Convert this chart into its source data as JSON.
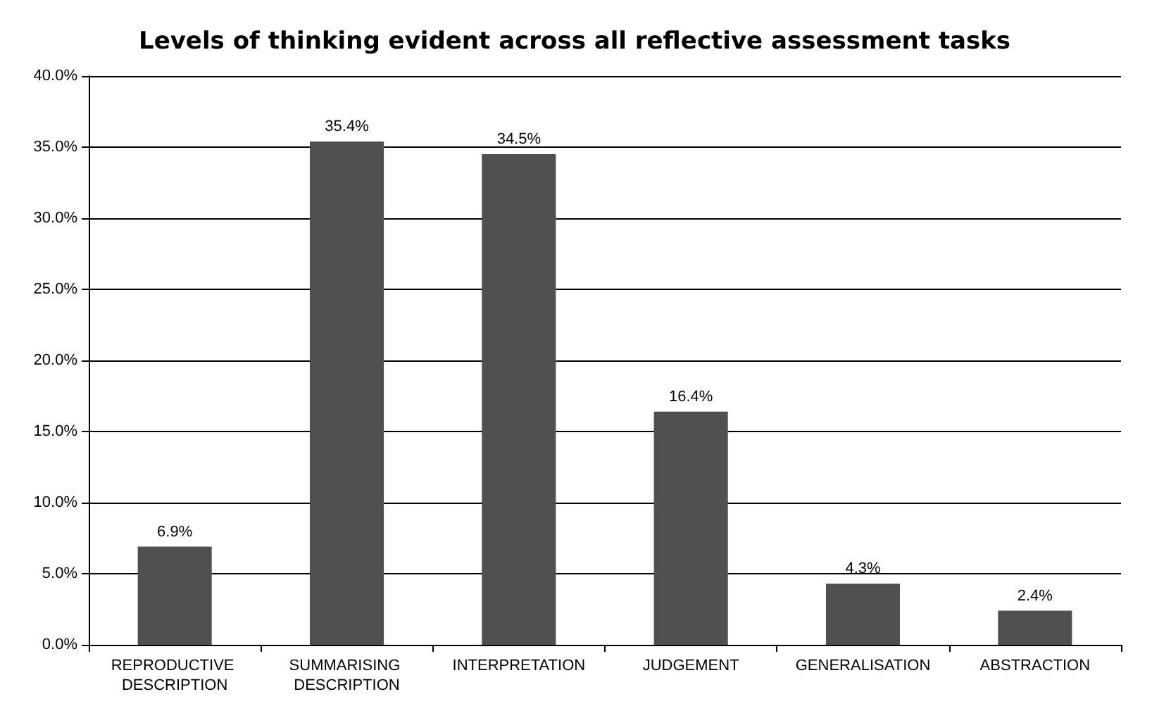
{
  "chart_data": {
    "type": "bar",
    "title": "Levels of thinking evident across all reflective assessment tasks",
    "categories": [
      "REPRODUCTIVE DESCRIPTION",
      "SUMMARISING DESCRIPTION",
      "INTERPRETATION",
      "JUDGEMENT",
      "GENERALISATION",
      "ABSTRACTION"
    ],
    "values": [
      6.9,
      35.4,
      34.5,
      16.4,
      4.3,
      2.4
    ],
    "value_labels": [
      "6.9%",
      "35.4%",
      "34.5%",
      "16.4%",
      "4.3%",
      "2.4%"
    ],
    "color": "#505050",
    "ylim": [
      0,
      40
    ],
    "yticks": [
      {
        "value": 0,
        "label": "0.0%"
      },
      {
        "value": 5,
        "label": "5.0%"
      },
      {
        "value": 10,
        "label": "10.0%"
      },
      {
        "value": 15,
        "label": "15.0%"
      },
      {
        "value": 20,
        "label": "20.0%"
      },
      {
        "value": 25,
        "label": "25.0%"
      },
      {
        "value": 30,
        "label": "30.0%"
      },
      {
        "value": 35,
        "label": "35.0%"
      },
      {
        "value": 40,
        "label": "40.0%"
      }
    ],
    "grid": "y"
  }
}
